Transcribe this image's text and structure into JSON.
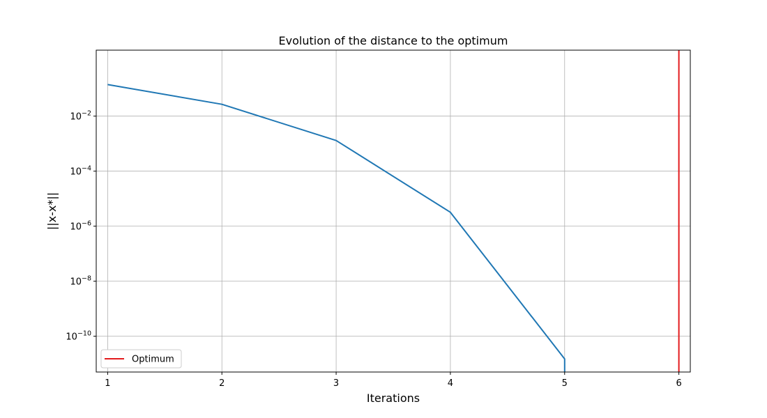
{
  "chart_data": {
    "type": "line",
    "title": "Evolution of the distance to the optimum",
    "xlabel": "Iterations",
    "ylabel": "||x-x*||",
    "yscale": "log",
    "xlim": [
      0.9,
      6.1
    ],
    "ylim": [
      5e-12,
      2.5
    ],
    "x_ticks": [
      1,
      2,
      3,
      4,
      5,
      6
    ],
    "y_ticks": [
      {
        "value": 0.01,
        "base": "10",
        "exp": "−2"
      },
      {
        "value": 0.0001,
        "base": "10",
        "exp": "−4"
      },
      {
        "value": 1e-06,
        "base": "10",
        "exp": "−6"
      },
      {
        "value": 1e-08,
        "base": "10",
        "exp": "−8"
      },
      {
        "value": 1e-10,
        "base": "10",
        "exp": "−10"
      }
    ],
    "grid": true,
    "series": [
      {
        "color": "#1f77b4",
        "x": [
          1,
          2,
          3,
          4,
          5,
          5
        ],
        "y": [
          0.14,
          0.027,
          0.0013,
          3.2e-06,
          1.5e-11,
          1e-20
        ]
      }
    ],
    "vlines": [
      {
        "name": "Optimum",
        "x": 6,
        "color": "#e31a1c"
      }
    ],
    "legend": {
      "position": "lower-left",
      "entries": [
        {
          "label": "Optimum",
          "color": "#e31a1c"
        }
      ]
    }
  }
}
